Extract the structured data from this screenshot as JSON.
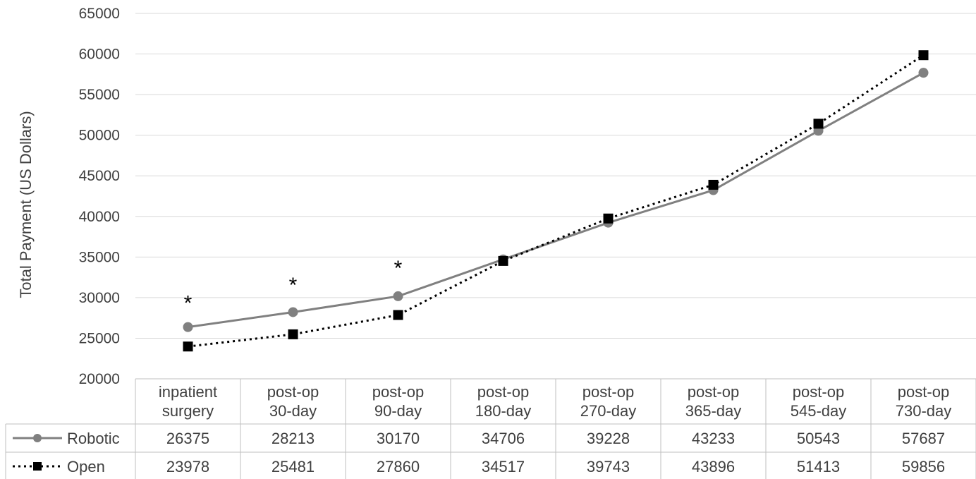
{
  "chart_data": {
    "type": "line",
    "title": "",
    "xlabel": "",
    "ylabel": "Total Payment (US Dollars)",
    "ylim": [
      20000,
      65000
    ],
    "ytick_step": 5000,
    "grid": true,
    "legend": "data-table-left",
    "categories": [
      [
        "inpatient",
        "surgery"
      ],
      [
        "post-op",
        "30-day"
      ],
      [
        "post-op",
        "90-day"
      ],
      [
        "post-op",
        "180-day"
      ],
      [
        "post-op",
        "270-day"
      ],
      [
        "post-op",
        "365-day"
      ],
      [
        "post-op",
        "545-day"
      ],
      [
        "post-op",
        "730-day"
      ]
    ],
    "series": [
      {
        "name": "Robotic",
        "values": [
          26375,
          28213,
          30170,
          34706,
          39228,
          43233,
          50543,
          57687
        ],
        "color": "#808080",
        "line": "solid",
        "marker": "circle"
      },
      {
        "name": "Open",
        "values": [
          23978,
          25481,
          27860,
          34517,
          39743,
          43896,
          51413,
          59856
        ],
        "color": "#000000",
        "line": "dotted",
        "marker": "square"
      }
    ],
    "annotations": [
      {
        "text": "*",
        "category_index": 0,
        "y": 29700
      },
      {
        "text": "*",
        "category_index": 1,
        "y": 31900
      },
      {
        "text": "*",
        "category_index": 2,
        "y": 34000
      }
    ]
  }
}
